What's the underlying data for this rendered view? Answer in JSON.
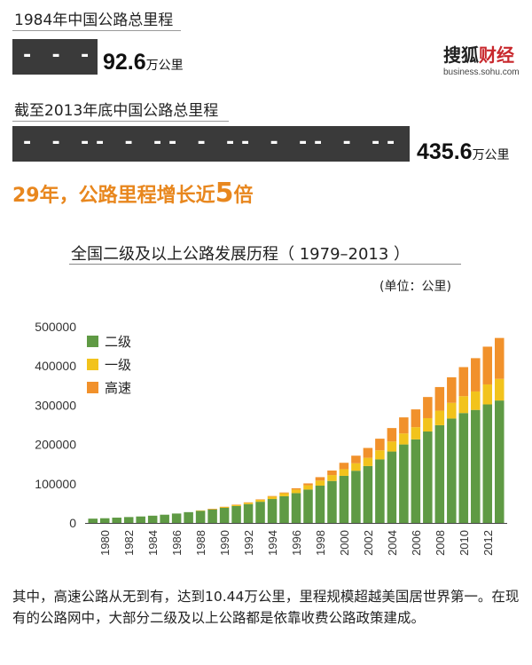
{
  "header": {
    "label_1984": "1984年中国公路总里程",
    "road_1984_dashes": [
      "- - -"
    ],
    "value_1984": "92.6",
    "unit_1984": "万公里",
    "label_2013": "截至2013年底中国公路总里程",
    "road_2013_dashes": [
      "- - -",
      "- - -",
      "- - -",
      "- - -",
      "- - -",
      "-"
    ],
    "value_2013": "435.6",
    "unit_2013": "万公里",
    "headline_pre": "29年，公路里程增长近",
    "headline_num": "5",
    "headline_post": "倍"
  },
  "logo": {
    "part1": "搜狐",
    "part2": "财经",
    "sub": "business.sohu.com"
  },
  "colors": {
    "second": "#5f9a44",
    "first": "#f2c31c",
    "express": "#f1912b",
    "accent": "#e8871e"
  },
  "chart_data": {
    "type": "bar",
    "stacked": true,
    "title": "全国二级及以上公路发展历程（ 1979–2013 ）",
    "unit_label": "(单位：公里)",
    "ylim": [
      0,
      500000
    ],
    "yticks": [
      "0",
      "100000",
      "200000",
      "300000",
      "400000",
      "500000"
    ],
    "xticks": [
      "1980",
      "1982",
      "1984",
      "1986",
      "1988",
      "1990",
      "1992",
      "1994",
      "1996",
      "1998",
      "2000",
      "2002",
      "2004",
      "2006",
      "2008",
      "2010",
      "2012"
    ],
    "legend_position": "top-left",
    "categories": [
      "1979",
      "1980",
      "1981",
      "1982",
      "1983",
      "1984",
      "1985",
      "1986",
      "1987",
      "1988",
      "1989",
      "1990",
      "1991",
      "1992",
      "1993",
      "1994",
      "1995",
      "1996",
      "1997",
      "1998",
      "1999",
      "2000",
      "2001",
      "2002",
      "2003",
      "2004",
      "2005",
      "2006",
      "2007",
      "2008",
      "2009",
      "2010",
      "2011",
      "2012",
      "2013"
    ],
    "series": [
      {
        "name": "二级",
        "values": [
          11000,
          12000,
          13500,
          15000,
          16500,
          18500,
          21000,
          24000,
          27500,
          31000,
          34500,
          38500,
          43000,
          48000,
          54000,
          61000,
          68000,
          76000,
          85000,
          95000,
          107000,
          120000,
          133000,
          145000,
          162000,
          182000,
          200000,
          213000,
          233000,
          249000,
          266000,
          280000,
          288000,
          302000,
          312000
        ]
      },
      {
        "name": "一级",
        "values": [
          0,
          0,
          0,
          0,
          0,
          0,
          0,
          0,
          0,
          1000,
          1500,
          2200,
          3000,
          3800,
          4800,
          6000,
          7500,
          9000,
          11000,
          13000,
          15000,
          17000,
          19000,
          21000,
          23000,
          25500,
          28000,
          31000,
          34000,
          37000,
          40000,
          43000,
          47000,
          51000,
          55000
        ]
      },
      {
        "name": "高速",
        "values": [
          0,
          0,
          0,
          0,
          0,
          0,
          0,
          0,
          0,
          0,
          150,
          500,
          600,
          700,
          1200,
          1600,
          2100,
          3400,
          4800,
          8700,
          11600,
          16300,
          19400,
          25100,
          29700,
          34300,
          41000,
          45400,
          53900,
          60300,
          65100,
          74100,
          84900,
          96200,
          104400
        ]
      }
    ]
  },
  "caption": "其中，高速公路从无到有，达到10.44万公里，里程规模超越美国居世界第一。在现有的公路网中，大部分二级及以上公路都是依靠收费公路政策建成。"
}
